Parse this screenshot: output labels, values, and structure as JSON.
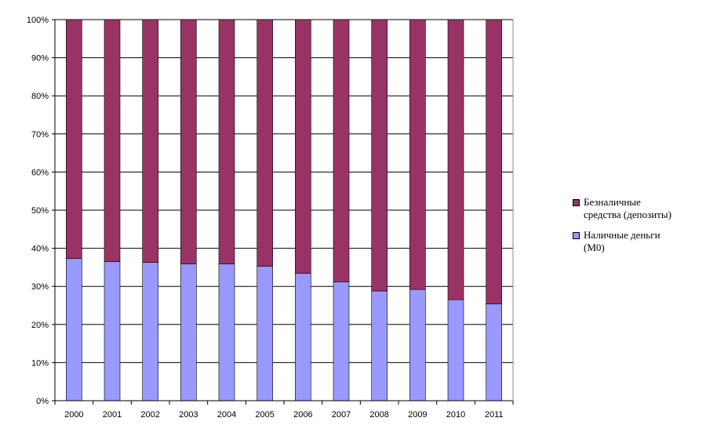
{
  "chart_data": {
    "type": "bar",
    "stacked": true,
    "percent": true,
    "categories": [
      "2000",
      "2001",
      "2002",
      "2003",
      "2004",
      "2005",
      "2006",
      "2007",
      "2008",
      "2009",
      "2010",
      "2011"
    ],
    "series": [
      {
        "name": "Наличные деньги (М0)",
        "color": "#9999ff",
        "values": [
          37.3,
          36.5,
          36.3,
          35.9,
          35.9,
          35.3,
          33.4,
          31.2,
          28.8,
          29.2,
          26.5,
          25.4
        ]
      },
      {
        "name": "Безналичные средства (депозиты)",
        "color": "#993366",
        "values": [
          62.7,
          63.5,
          63.7,
          64.1,
          64.1,
          64.7,
          66.6,
          68.8,
          71.2,
          70.8,
          73.5,
          74.6
        ]
      }
    ],
    "yticks": [
      "0%",
      "10%",
      "20%",
      "30%",
      "40%",
      "50%",
      "60%",
      "70%",
      "80%",
      "90%",
      "100%"
    ],
    "ylim": [
      0,
      100
    ],
    "grid": true,
    "legend_position": "right"
  },
  "legend": {
    "items": [
      {
        "line1": "Безналичные",
        "line2": "средства (депозиты)",
        "color": "#993366"
      },
      {
        "line1": "Наличные деньги",
        "line2": "(М0)",
        "color": "#9999ff"
      }
    ]
  }
}
